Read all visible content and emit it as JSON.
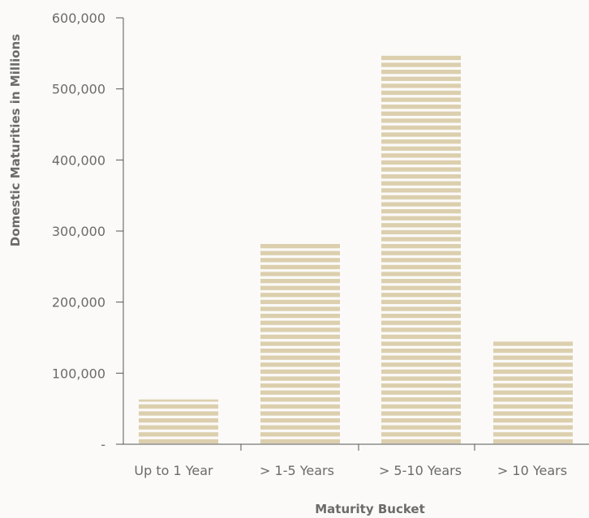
{
  "chart_data": {
    "type": "bar",
    "categories": [
      "Up to 1 Year",
      "> 1-5 Years",
      "> 5-10 Years",
      "> 10 Years"
    ],
    "values": [
      63000,
      285000,
      550000,
      148000
    ],
    "ylabel": "Domestic Maturities in Millions",
    "xlabel": "Maturity Bucket",
    "ylim": [
      0,
      600000
    ],
    "y_ticks": [
      0,
      100000,
      200000,
      300000,
      400000,
      500000,
      600000
    ],
    "y_tick_labels": [
      "-",
      "100,000",
      "200,000",
      "300,000",
      "400,000",
      "500,000",
      "600,000"
    ],
    "grid": false,
    "bar_color": "#dccfae",
    "bar_pattern": "horizontal-stripes",
    "axis_color": "#555555",
    "text_color": "#6b6b6b"
  }
}
